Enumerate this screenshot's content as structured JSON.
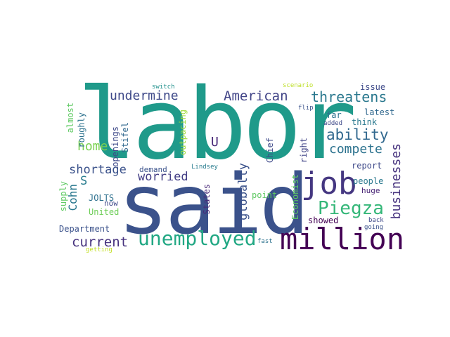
{
  "words": [
    {
      "text": "labor",
      "color": "#1f9a8a"
    },
    {
      "text": "said",
      "color": "#3b528b"
    },
    {
      "text": "million",
      "color": "#440154"
    },
    {
      "text": "job",
      "color": "#453781"
    },
    {
      "text": "unemployed",
      "color": "#22a884"
    },
    {
      "text": "Piegza",
      "color": "#35b779"
    },
    {
      "text": "threatens",
      "color": "#2a788e"
    },
    {
      "text": "American",
      "color": "#414487"
    },
    {
      "text": "undermine",
      "color": "#3e4989"
    },
    {
      "text": "ability",
      "color": "#31688e"
    },
    {
      "text": "compete",
      "color": "#2c728e"
    },
    {
      "text": "shortage",
      "color": "#3b528b"
    },
    {
      "text": "worried",
      "color": "#433e85"
    },
    {
      "text": "home",
      "color": "#7ad151"
    },
    {
      "text": "current",
      "color": "#46327e"
    },
    {
      "text": "businesses",
      "color": "#46327e"
    },
    {
      "text": "globally",
      "color": "#3b528b"
    },
    {
      "text": "Cohn",
      "color": "#2a788e"
    },
    {
      "text": "U",
      "color": "#482878"
    },
    {
      "text": "S",
      "color": "#287c8e"
    },
    {
      "text": "issue",
      "color": "#3e4a89"
    },
    {
      "text": "far",
      "color": "#2c728e"
    },
    {
      "text": "latest",
      "color": "#31688e"
    },
    {
      "text": "think",
      "color": "#2a788e"
    },
    {
      "text": "report",
      "color": "#3e4989"
    },
    {
      "text": "people",
      "color": "#2a788e"
    },
    {
      "text": "huge",
      "color": "#482475"
    },
    {
      "text": "showed",
      "color": "#440154"
    },
    {
      "text": "flip",
      "color": "#3b528b"
    },
    {
      "text": "added",
      "color": "#3e4989"
    },
    {
      "text": "scenario",
      "color": "#bddf26"
    },
    {
      "text": "switch",
      "color": "#21918c"
    },
    {
      "text": "back",
      "color": "#3e4989"
    },
    {
      "text": "going",
      "color": "#3b528b"
    },
    {
      "text": "fast",
      "color": "#2c728e"
    },
    {
      "text": "getting",
      "color": "#c2df23"
    },
    {
      "text": "demand",
      "color": "#3b528b"
    },
    {
      "text": "now",
      "color": "#3e4989"
    },
    {
      "text": "JOLTS",
      "color": "#2d708e"
    },
    {
      "text": "United",
      "color": "#6ece58"
    },
    {
      "text": "Department",
      "color": "#3b528b"
    },
    {
      "text": "Lindsey",
      "color": "#287c8e"
    },
    {
      "text": "point",
      "color": "#5ec962"
    },
    {
      "text": "right",
      "color": "#414487"
    },
    {
      "text": "Chief",
      "color": "#3e4989"
    },
    {
      "text": "Economist",
      "color": "#5ec962"
    },
    {
      "text": "States",
      "color": "#482878"
    },
    {
      "text": "outpacing",
      "color": "#a0da39"
    },
    {
      "text": "openings",
      "color": "#3e4989"
    },
    {
      "text": "Stifel",
      "color": "#31688e"
    },
    {
      "text": "roughly",
      "color": "#2c728e"
    },
    {
      "text": "almost",
      "color": "#5ec962"
    },
    {
      "text": "supply",
      "color": "#5ec962"
    }
  ]
}
